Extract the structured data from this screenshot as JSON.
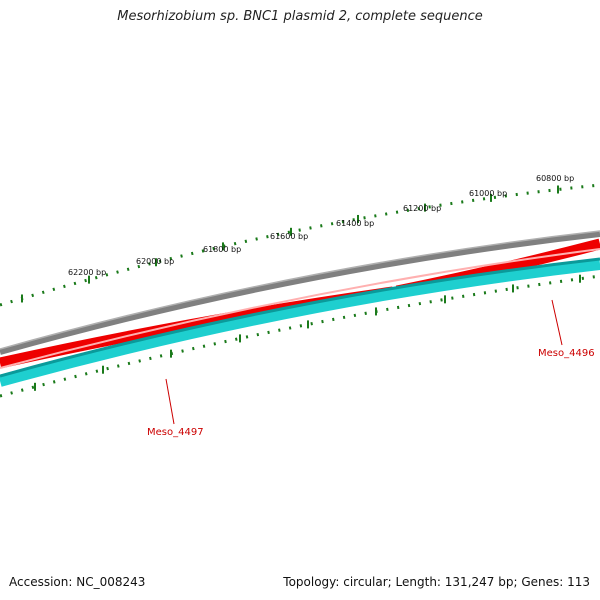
{
  "title": "Mesorhizobium sp. BNC1 plasmid 2, complete sequence",
  "footer": {
    "accession": "Accession: NC_008243",
    "summary": "Topology: circular; Length: 131,247 bp; Genes: 113"
  },
  "ruler": {
    "labels": [
      "60800 bp",
      "61000 bp",
      "61200 bp",
      "61400 bp",
      "61600 bp",
      "61800 bp",
      "62000 bp",
      "62200 bp"
    ]
  },
  "genes": [
    {
      "name": "Meso_4496",
      "strand": "forward"
    },
    {
      "name": "Meso_4497",
      "strand": "reverse"
    }
  ],
  "colors": {
    "backbone": "#808080",
    "forward_gene": "#ee0000",
    "reverse_gene": "#1ecfcf",
    "ticks": "#1a7a1a",
    "gene_label": "#cc0000"
  }
}
